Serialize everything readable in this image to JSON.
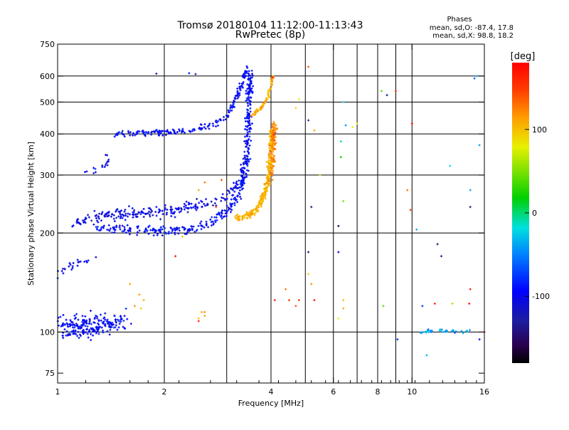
{
  "chart_data": {
    "type": "scatter",
    "title": "Tromsø 20180104  11:12:00-11:13:43",
    "subtitle": "RwPretec (8p)",
    "xlabel": "Frequency [MHz]",
    "ylabel": "Stationary phase Virtual Height [km]",
    "xscale": "log",
    "yscale": "log",
    "xlim": [
      1,
      16
    ],
    "ylim": [
      70,
      750
    ],
    "x_ticks": [
      1,
      2,
      4,
      6,
      8,
      10,
      16
    ],
    "x_tick_labels": [
      "1",
      "2",
      "4",
      "6",
      "8",
      "10",
      "16"
    ],
    "x_grid": [
      1,
      2,
      3,
      4,
      5,
      6,
      7,
      8,
      9,
      10,
      16
    ],
    "y_ticks": [
      75,
      100,
      200,
      300,
      400,
      500,
      600,
      750
    ],
    "y_tick_labels": [
      "75",
      "100",
      "200",
      "300",
      "400",
      "500",
      "600",
      "750"
    ],
    "y_grid": [
      100,
      200,
      300,
      400,
      500,
      600
    ],
    "grid": true,
    "phase_info": {
      "heading": "Phases",
      "line_o": "mean, sd,O: -87.4, 17.8",
      "line_x": "mean, sd,X:  98.8, 18.2"
    },
    "colorbar": {
      "label": "[deg]",
      "range": [
        -180,
        180
      ],
      "ticks": [
        100,
        0,
        -100
      ],
      "tick_labels": [
        "100",
        "0",
        "-100"
      ]
    },
    "traces": [
      {
        "kind": "o-F2-lower",
        "points": [
          [
            1.3,
            210
          ],
          [
            1.6,
            205
          ],
          [
            2.0,
            202
          ],
          [
            2.4,
            205
          ],
          [
            2.7,
            215
          ],
          [
            3.0,
            232
          ],
          [
            3.2,
            255
          ],
          [
            3.35,
            290
          ],
          [
            3.42,
            340
          ],
          [
            3.46,
            420
          ],
          [
            3.48,
            520
          ],
          [
            3.48,
            620
          ]
        ],
        "phase": -95,
        "spread": 0.05,
        "count": 420
      },
      {
        "kind": "o-F2-upper",
        "points": [
          [
            1.45,
            400
          ],
          [
            1.7,
            402
          ],
          [
            2.0,
            404
          ],
          [
            2.4,
            410
          ],
          [
            2.8,
            430
          ],
          [
            3.0,
            455
          ],
          [
            3.15,
            500
          ],
          [
            3.3,
            560
          ],
          [
            3.42,
            640
          ]
        ],
        "phase": -95,
        "spread": 0.03,
        "count": 200
      },
      {
        "kind": "o-F1",
        "points": [
          [
            1.1,
            215
          ],
          [
            1.3,
            225
          ],
          [
            1.6,
            230
          ],
          [
            2.0,
            232
          ],
          [
            2.4,
            240
          ],
          [
            2.8,
            250
          ],
          [
            3.1,
            265
          ],
          [
            3.3,
            295
          ],
          [
            3.4,
            340
          ]
        ],
        "phase": -105,
        "spread": 0.06,
        "count": 260
      },
      {
        "kind": "o-Es-tail",
        "points": [
          [
            1.2,
            300
          ],
          [
            1.35,
            320
          ],
          [
            1.4,
            340
          ]
        ],
        "phase": -100,
        "spread": 0.05,
        "count": 18
      },
      {
        "kind": "x-F2",
        "points": [
          [
            3.2,
            222
          ],
          [
            3.5,
            228
          ],
          [
            3.7,
            240
          ],
          [
            3.85,
            265
          ],
          [
            3.95,
            300
          ],
          [
            4.0,
            350
          ],
          [
            4.03,
            410
          ]
        ],
        "phase": 105,
        "spread": 0.04,
        "count": 320
      },
      {
        "kind": "x-F2-upper",
        "points": [
          [
            3.55,
            455
          ],
          [
            3.75,
            480
          ],
          [
            3.9,
            510
          ],
          [
            4.0,
            560
          ],
          [
            4.05,
            600
          ]
        ],
        "phase": 110,
        "spread": 0.02,
        "count": 70
      },
      {
        "kind": "x-F2-top",
        "points": [
          [
            4.02,
            300
          ],
          [
            4.05,
            350
          ],
          [
            4.08,
            400
          ],
          [
            4.1,
            430
          ]
        ],
        "phase": 125,
        "spread": 0.04,
        "count": 90
      },
      {
        "kind": "o-E-cluster",
        "points": [
          [
            1.0,
            103
          ],
          [
            1.2,
            104
          ],
          [
            1.4,
            106
          ],
          [
            1.55,
            108
          ]
        ],
        "phase": -95,
        "spread": 0.12,
        "count": 230
      },
      {
        "kind": "o-Es-cluster",
        "points": [
          [
            1.0,
            150
          ],
          [
            1.1,
            158
          ],
          [
            1.2,
            165
          ],
          [
            1.3,
            170
          ]
        ],
        "phase": -100,
        "spread": 0.04,
        "count": 24
      },
      {
        "kind": "e-high",
        "points": [
          [
            10.5,
            100
          ],
          [
            12,
            101
          ],
          [
            14,
            100
          ],
          [
            15,
            100
          ]
        ],
        "phase": -40,
        "spread": 0.02,
        "count": 40
      }
    ],
    "scatter": [
      [
        1.9,
        610,
        -110
      ],
      [
        2.35,
        612,
        -90
      ],
      [
        2.45,
        608,
        -120
      ],
      [
        4.05,
        595,
        160
      ],
      [
        5.1,
        640,
        140
      ],
      [
        6.4,
        500,
        -20
      ],
      [
        8.2,
        540,
        40
      ],
      [
        8.5,
        525,
        -130
      ],
      [
        9.0,
        540,
        170
      ],
      [
        10.0,
        430,
        175
      ],
      [
        15.0,
        590,
        -60
      ],
      [
        15.2,
        600,
        -40
      ],
      [
        4.7,
        480,
        90
      ],
      [
        4.8,
        510,
        80
      ],
      [
        5.1,
        440,
        -130
      ],
      [
        5.3,
        410,
        110
      ],
      [
        5.5,
        300,
        60
      ],
      [
        6.3,
        380,
        -10
      ],
      [
        6.3,
        340,
        20
      ],
      [
        6.5,
        425,
        -40
      ],
      [
        6.8,
        420,
        80
      ],
      [
        7.0,
        430,
        90
      ],
      [
        9.7,
        270,
        130
      ],
      [
        12.8,
        320,
        -20
      ],
      [
        15.5,
        370,
        -40
      ],
      [
        2.5,
        270,
        110
      ],
      [
        2.6,
        285,
        130
      ],
      [
        2.8,
        240,
        150
      ],
      [
        2.25,
        195,
        95
      ],
      [
        1.9,
        240,
        -100
      ],
      [
        2.9,
        290,
        140
      ],
      [
        5.2,
        240,
        -150
      ],
      [
        6.2,
        210,
        -160
      ],
      [
        6.4,
        250,
        50
      ],
      [
        9.9,
        235,
        150
      ],
      [
        10.3,
        205,
        -40
      ],
      [
        14.6,
        270,
        -40
      ],
      [
        14.6,
        240,
        -150
      ],
      [
        2.6,
        115,
        120
      ],
      [
        2.6,
        112,
        110
      ],
      [
        2.5,
        110,
        95
      ],
      [
        2.5,
        108,
        160
      ],
      [
        2.55,
        115,
        110
      ],
      [
        4.4,
        135,
        130
      ],
      [
        4.5,
        125,
        150
      ],
      [
        4.7,
        120,
        140
      ],
      [
        4.8,
        125,
        150
      ],
      [
        5.3,
        125,
        170
      ],
      [
        6.4,
        118,
        110
      ],
      [
        6.4,
        125,
        100
      ],
      [
        6.2,
        110,
        80
      ],
      [
        8.3,
        120,
        40
      ],
      [
        5.1,
        150,
        90
      ],
      [
        5.2,
        140,
        120
      ],
      [
        4.1,
        125,
        160
      ],
      [
        2.15,
        170,
        170
      ],
      [
        5.1,
        175,
        -140
      ],
      [
        6.2,
        175,
        -100
      ],
      [
        11.8,
        185,
        -150
      ],
      [
        12.1,
        170,
        -120
      ],
      [
        11.6,
        122,
        160
      ],
      [
        13.0,
        122,
        60
      ],
      [
        10.7,
        120,
        -80
      ],
      [
        14.5,
        122,
        170
      ],
      [
        14.6,
        135,
        170
      ],
      [
        1.6,
        140,
        110
      ],
      [
        1.65,
        120,
        120
      ],
      [
        1.7,
        130,
        115
      ],
      [
        1.75,
        125,
        105
      ],
      [
        1.72,
        118,
        90
      ],
      [
        9.1,
        95,
        -80
      ],
      [
        11.0,
        85,
        -30
      ],
      [
        15.5,
        95,
        -90
      ],
      [
        16.0,
        100,
        170
      ]
    ]
  }
}
